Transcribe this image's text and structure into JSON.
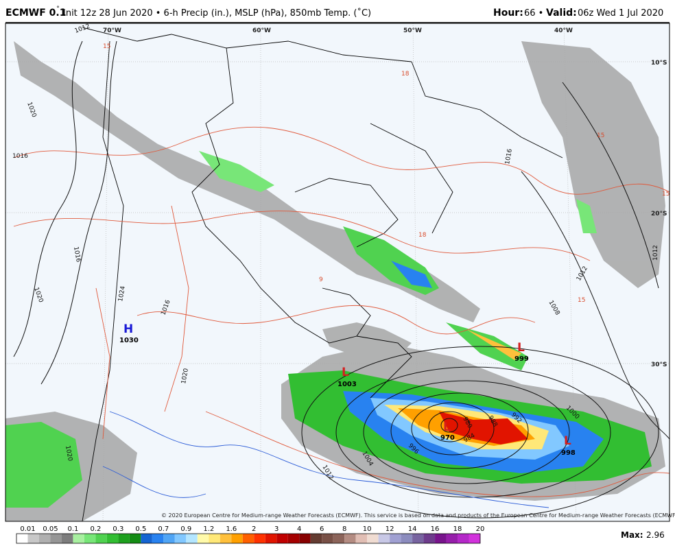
{
  "header": {
    "model": "ECMWF 0.1",
    "degree": "˚",
    "description": "Init 12z 28 Jun 2020 • 6-h Precip (in.), MSLP (hPa), 850mb Temp. (˚C)",
    "hour_label": "Hour:",
    "hour": "66 •",
    "valid_label": "Valid:",
    "valid": "06z Wed 1 Jul 2020"
  },
  "map": {
    "longitudes": [
      "70°W",
      "60°W",
      "50°W",
      "40°W"
    ],
    "latitudes": [
      "10°S",
      "20°S",
      "30°S"
    ],
    "centers": [
      {
        "letter": "H",
        "pressure": "1030"
      },
      {
        "letter": "L",
        "pressure": "1003"
      },
      {
        "letter": "L",
        "pressure": "999"
      },
      {
        "letter": "L",
        "pressure": "970"
      },
      {
        "letter": "L",
        "pressure": "998"
      }
    ],
    "isobar_labels": [
      "1012",
      "1020",
      "1016",
      "1020",
      "1024",
      "1016",
      "1020",
      "1016",
      "1008",
      "1012",
      "1016",
      "1000",
      "992",
      "988",
      "984",
      "980",
      "996",
      "1004",
      "1012",
      "1012",
      "1020"
    ],
    "temperature_labels": [
      "15",
      "18",
      "9",
      "18",
      "15",
      "15",
      "15"
    ],
    "copyright": "© 2020 European Centre for Medium-range Weather Forecasts (ECMWF). This service is based on data and products of the European Centre for Medium-range Weather Forecasts (ECMWF)."
  },
  "colorbar": {
    "labels": [
      "0.01",
      "0.05",
      "0.1",
      "0.2",
      "0.3",
      "0.5",
      "0.7",
      "0.9",
      "1.2",
      "1.6",
      "2",
      "3",
      "4",
      "6",
      "8",
      "10",
      "12",
      "14",
      "16",
      "18",
      "20"
    ],
    "colors": [
      "#ffffff",
      "#c8c8c8",
      "#b0b0b0",
      "#969696",
      "#7d7d7d",
      "#a8f0a0",
      "#78e678",
      "#50d250",
      "#32be32",
      "#1ea01e",
      "#148c14",
      "#1464d2",
      "#2882f0",
      "#50a5f5",
      "#82c8ff",
      "#b4e6ff",
      "#fffaaa",
      "#ffe878",
      "#ffc03c",
      "#ffa000",
      "#ff6000",
      "#ff3200",
      "#e11400",
      "#c00000",
      "#a50000",
      "#870000",
      "#643c32",
      "#785046",
      "#8c645a",
      "#b48c82",
      "#e1beb4",
      "#f0dcd2",
      "#c8c8e6",
      "#a0a0d2",
      "#8c8cbe",
      "#7864a0",
      "#6e3c8c",
      "#78148c",
      "#961eaa",
      "#b428c8",
      "#d232dc"
    ],
    "max_label": "Max:",
    "max": "2.96"
  }
}
